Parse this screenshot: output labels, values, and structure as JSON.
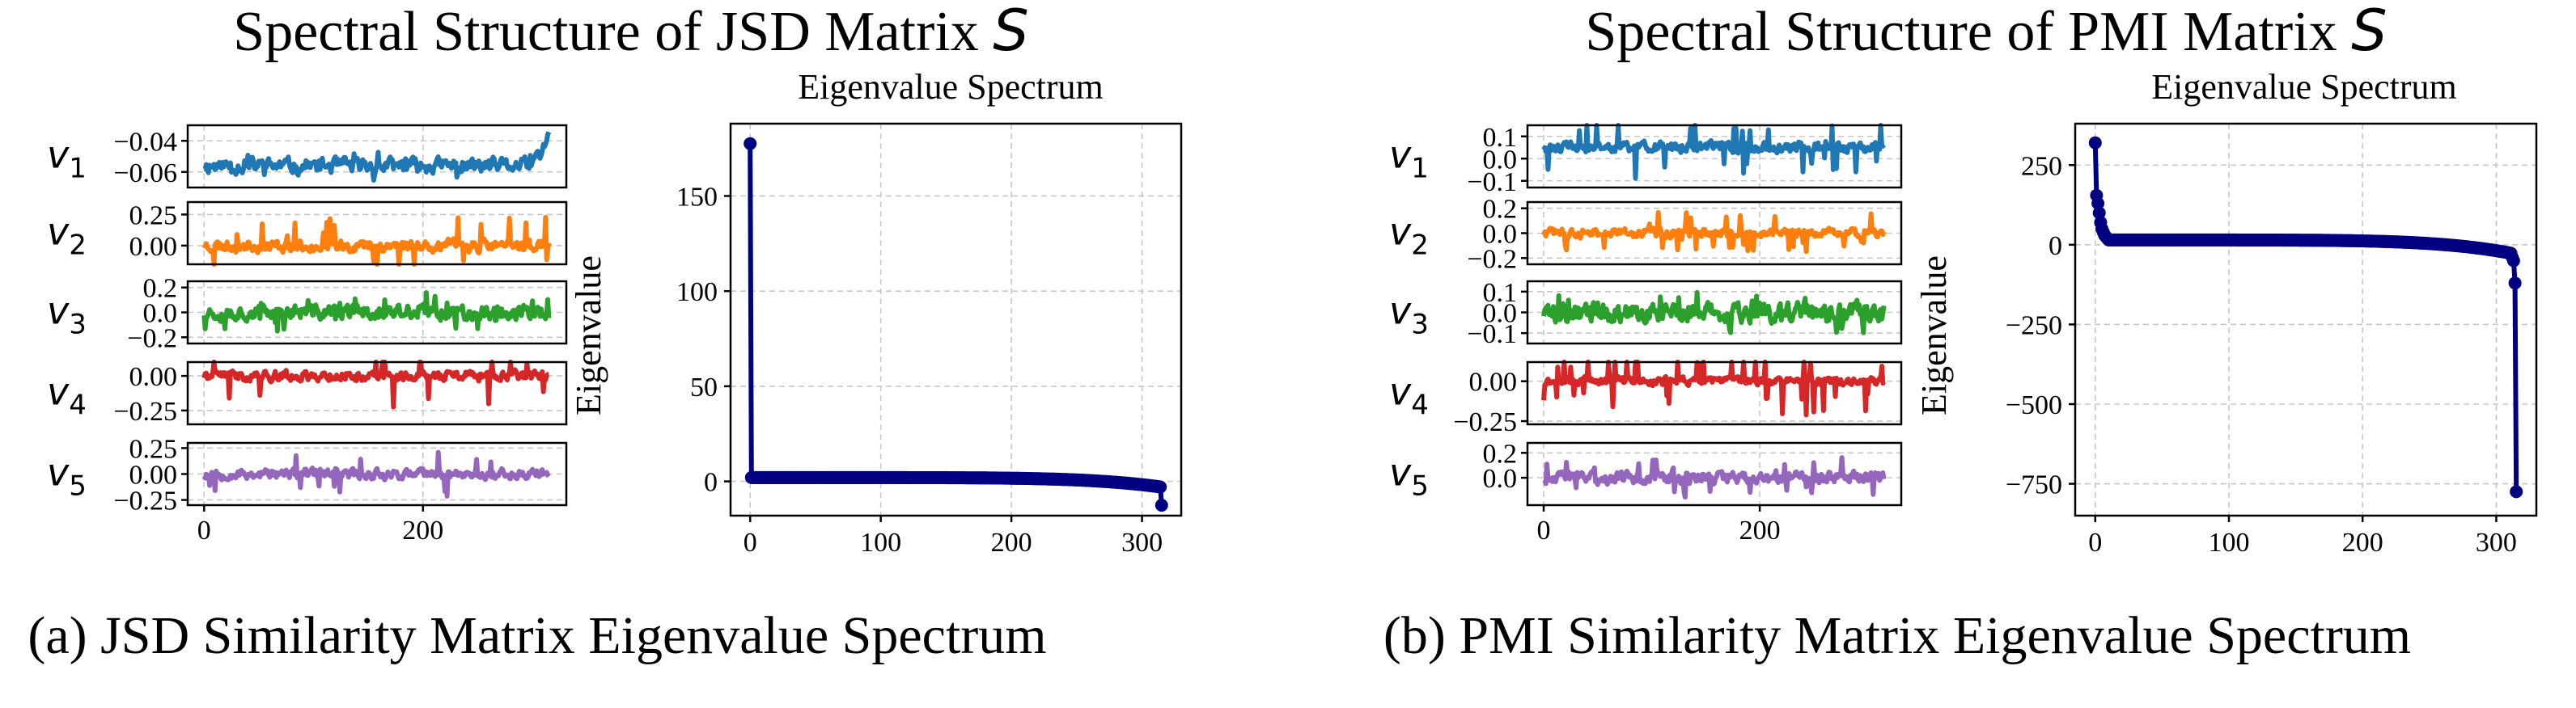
{
  "chart_data": [
    {
      "type": "line",
      "panel_label": "(a)",
      "suptitle_prefix": "Spectral Structure of JSD Matrix",
      "suptitle_symbol": "S",
      "caption": "(a) JSD Similarity Matrix Eigenvalue Spectrum",
      "eigenvectors": {
        "n": 316,
        "xticks": [
          "0",
          "200"
        ],
        "xtick_values": [
          0,
          200
        ],
        "series": [
          {
            "name": "v1",
            "var": "v",
            "sub": "1",
            "color": "#1f77b4",
            "ylim": [
              -0.07,
              -0.03
            ],
            "yticks": [
              -0.04,
              -0.06
            ],
            "ytick_labels": [
              "−0.04",
              "−0.06"
            ],
            "base": -0.056,
            "amp": 0.004,
            "spike_prob": 0.05,
            "spike_amp": 0.006,
            "seed": 11,
            "tail_rise": 0.02
          },
          {
            "name": "v2",
            "var": "v",
            "sub": "2",
            "color": "#ff7f0e",
            "ylim": [
              -0.15,
              0.35
            ],
            "yticks": [
              0.25,
              0.0
            ],
            "ytick_labels": [
              "0.25",
              "0.00"
            ],
            "base": 0.0,
            "amp": 0.04,
            "spike_prob": 0.05,
            "spike_amp": 0.22,
            "seed": 23
          },
          {
            "name": "v3",
            "var": "v",
            "sub": "3",
            "color": "#2ca02c",
            "ylim": [
              -0.25,
              0.25
            ],
            "yticks": [
              0.2,
              0.0,
              -0.2
            ],
            "ytick_labels": [
              "0.2",
              "0.0",
              "−0.2"
            ],
            "base": 0.0,
            "amp": 0.05,
            "spike_prob": 0.06,
            "spike_amp": 0.15,
            "seed": 37
          },
          {
            "name": "v4",
            "var": "v",
            "sub": "4",
            "color": "#d62728",
            "ylim": [
              -0.35,
              0.1
            ],
            "yticks": [
              0.0,
              -0.25
            ],
            "ytick_labels": [
              "0.00",
              "−0.25"
            ],
            "base": 0.0,
            "amp": 0.03,
            "spike_prob": 0.06,
            "spike_amp": 0.25,
            "seed": 41
          },
          {
            "name": "v5",
            "var": "v",
            "sub": "5",
            "color": "#9467bd",
            "ylim": [
              -0.3,
              0.3
            ],
            "yticks": [
              0.25,
              0.0,
              -0.25
            ],
            "ytick_labels": [
              "0.25",
              "0.00",
              "−0.25"
            ],
            "base": 0.0,
            "amp": 0.04,
            "spike_prob": 0.05,
            "spike_amp": 0.22,
            "seed": 53
          }
        ]
      },
      "spectrum": {
        "title": "Eigenvalue Spectrum",
        "ylabel": "Eigenvalue",
        "xlabel": "",
        "n": 316,
        "xlim": [
          -15,
          330
        ],
        "ylim": [
          -18,
          188
        ],
        "xticks": [
          0,
          100,
          200,
          300
        ],
        "xtick_labels": [
          "0",
          "100",
          "200",
          "300"
        ],
        "yticks": [
          0,
          50,
          100,
          150
        ],
        "ytick_labels": [
          "0",
          "50",
          "100",
          "150"
        ],
        "top": [
          177.5
        ],
        "bottom": [
          -12.5
        ],
        "body_start": 2.0,
        "body_end": -3.0,
        "color": "#000080"
      }
    },
    {
      "type": "line",
      "panel_label": "(b)",
      "suptitle_prefix": "Spectral Structure of PMI Matrix",
      "suptitle_symbol": "S",
      "caption": "(b) PMI Similarity Matrix Eigenvalue Spectrum",
      "eigenvectors": {
        "n": 316,
        "xticks": [
          "0",
          "200"
        ],
        "xtick_values": [
          0,
          200
        ],
        "series": [
          {
            "name": "v1",
            "var": "v",
            "sub": "1",
            "color": "#1f77b4",
            "ylim": [
              -0.13,
              0.15
            ],
            "yticks": [
              0.1,
              0.0,
              -0.1
            ],
            "ytick_labels": [
              "0.1",
              "0.0",
              "−0.1"
            ],
            "base": 0.05,
            "amp": 0.02,
            "spike_prob": 0.1,
            "spike_amp": 0.14,
            "seed": 61
          },
          {
            "name": "v2",
            "var": "v",
            "sub": "2",
            "color": "#ff7f0e",
            "ylim": [
              -0.25,
              0.25
            ],
            "yticks": [
              0.2,
              0.0,
              -0.2
            ],
            "ytick_labels": [
              "0.2",
              "0.0",
              "−0.2"
            ],
            "base": 0.0,
            "amp": 0.03,
            "spike_prob": 0.1,
            "spike_amp": 0.16,
            "seed": 73
          },
          {
            "name": "v3",
            "var": "v",
            "sub": "3",
            "color": "#2ca02c",
            "ylim": [
              -0.15,
              0.15
            ],
            "yticks": [
              0.1,
              0.0,
              -0.1
            ],
            "ytick_labels": [
              "0.1",
              "0.0",
              "−0.1"
            ],
            "base": 0.0,
            "amp": 0.04,
            "spike_prob": 0.1,
            "spike_amp": 0.1,
            "seed": 89
          },
          {
            "name": "v4",
            "var": "v",
            "sub": "4",
            "color": "#d62728",
            "ylim": [
              -0.27,
              0.12
            ],
            "yticks": [
              0.0,
              -0.25
            ],
            "ytick_labels": [
              "0.00",
              "−0.25"
            ],
            "base": 0.0,
            "amp": 0.02,
            "spike_prob": 0.1,
            "spike_amp": 0.2,
            "seed": 97
          },
          {
            "name": "v5",
            "var": "v",
            "sub": "5",
            "color": "#9467bd",
            "ylim": [
              -0.22,
              0.28
            ],
            "yticks": [
              0.2,
              0.0
            ],
            "ytick_labels": [
              "0.2",
              "0.0"
            ],
            "base": 0.0,
            "amp": 0.04,
            "spike_prob": 0.1,
            "spike_amp": 0.16,
            "seed": 103
          }
        ]
      },
      "spectrum": {
        "title": "Eigenvalue Spectrum",
        "ylabel": "Eigenvalue",
        "xlabel": "",
        "n": 316,
        "xlim": [
          -15,
          330
        ],
        "ylim": [
          -850,
          380
        ],
        "xticks": [
          0,
          100,
          200,
          300
        ],
        "xtick_labels": [
          "0",
          "100",
          "200",
          "300"
        ],
        "yticks": [
          250,
          0,
          -250,
          -500,
          -750
        ],
        "ytick_labels": [
          "250",
          "0",
          "−250",
          "−500",
          "−750"
        ],
        "top": [
          320,
          155,
          130,
          100,
          70,
          50,
          40,
          30,
          25,
          20
        ],
        "bottom": [
          -40,
          -50,
          -120,
          -775
        ],
        "body_start": 15.0,
        "body_end": -30.0,
        "color": "#000080"
      }
    }
  ]
}
